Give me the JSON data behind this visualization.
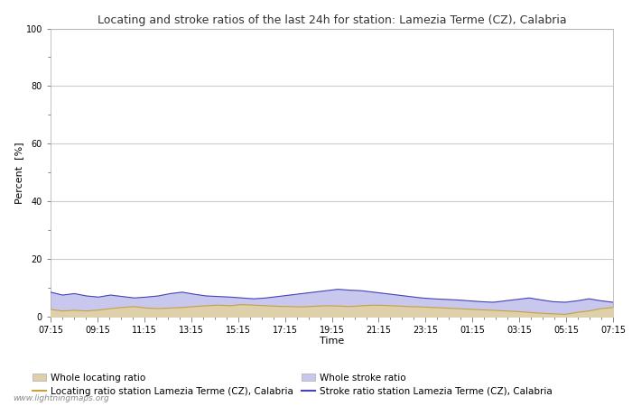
{
  "title": "Locating and stroke ratios of the last 24h for station: Lamezia Terme (CZ), Calabria",
  "xlabel": "Time",
  "ylabel": "Percent  [%]",
  "ylim": [
    0,
    100
  ],
  "yticks": [
    0,
    20,
    40,
    60,
    80,
    100
  ],
  "yticks_minor": [
    10,
    30,
    50,
    70,
    90
  ],
  "x_labels": [
    "07:15",
    "09:15",
    "11:15",
    "13:15",
    "15:15",
    "17:15",
    "19:15",
    "21:15",
    "23:15",
    "01:15",
    "03:15",
    "05:15",
    "07:15"
  ],
  "bg_color": "#ffffff",
  "plot_bg_color": "#ffffff",
  "grid_color": "#cccccc",
  "watermark": "www.lightningmaps.org",
  "legend_items": [
    {
      "label": "Whole locating ratio",
      "type": "fill",
      "color": "#ddd0aa"
    },
    {
      "label": "Locating ratio station Lamezia Terme (CZ), Calabria",
      "type": "line",
      "color": "#c8a040"
    },
    {
      "label": "Whole stroke ratio",
      "type": "fill",
      "color": "#c8c8ee"
    },
    {
      "label": "Stroke ratio station Lamezia Terme (CZ), Calabria",
      "type": "line",
      "color": "#4444bb"
    }
  ],
  "whole_locating": [
    2.5,
    2.0,
    2.2,
    2.0,
    2.3,
    2.8,
    3.2,
    3.5,
    3.0,
    2.8,
    3.0,
    3.2,
    3.5,
    3.8,
    4.0,
    3.8,
    4.2,
    4.0,
    3.8,
    3.6,
    3.5,
    3.4,
    3.6,
    3.8,
    3.7,
    3.5,
    3.8,
    4.0,
    3.9,
    3.7,
    3.5,
    3.4,
    3.2,
    3.0,
    2.8,
    2.6,
    2.4,
    2.2,
    2.0,
    1.8,
    1.5,
    1.2,
    1.0,
    0.8,
    1.5,
    2.0,
    2.8,
    3.2
  ],
  "whole_stroke": [
    8.5,
    7.5,
    8.0,
    7.2,
    6.8,
    7.5,
    7.0,
    6.5,
    6.8,
    7.2,
    8.0,
    8.5,
    7.8,
    7.2,
    7.0,
    6.8,
    6.5,
    6.2,
    6.5,
    7.0,
    7.5,
    8.0,
    8.5,
    9.0,
    9.5,
    9.2,
    9.0,
    8.5,
    8.0,
    7.5,
    7.0,
    6.5,
    6.2,
    6.0,
    5.8,
    5.5,
    5.2,
    5.0,
    5.5,
    6.0,
    6.5,
    5.8,
    5.2,
    5.0,
    5.5,
    6.2,
    5.5,
    5.0
  ]
}
